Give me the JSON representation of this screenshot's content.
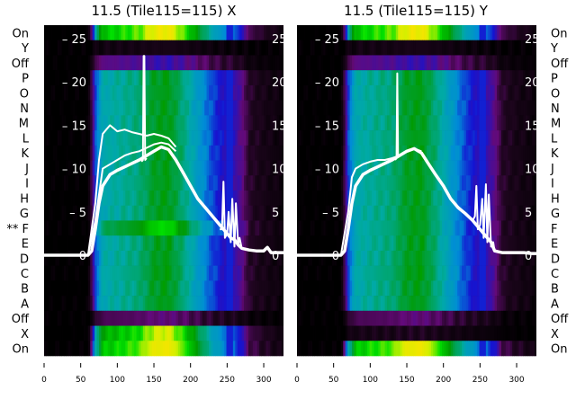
{
  "chart_data": {
    "type": "heatmap",
    "row_labels": [
      "On",
      "Y",
      "Off",
      "P",
      "O",
      "N",
      "M",
      "L",
      "K",
      "J",
      "I",
      "H",
      "G",
      "** F",
      "E",
      "D",
      "C",
      "B",
      "A",
      "Off",
      "X",
      "On"
    ],
    "x_ticks": [
      0,
      50,
      100,
      150,
      200,
      250,
      300
    ],
    "xlim": [
      0,
      327
    ],
    "y_ticks": [
      0,
      5,
      10,
      15,
      20,
      25
    ],
    "ylim": [
      -2,
      26
    ],
    "colors": {
      "line": "#ffffff",
      "label": "#000000",
      "tick_overlay": "#ffffff"
    },
    "heat_x": [
      0,
      60,
      65,
      70,
      80,
      100,
      130,
      150,
      170,
      190,
      210,
      230,
      245,
      260,
      270,
      280,
      300,
      327
    ],
    "panels": [
      {
        "title": "11.5 (Tile115=115) X",
        "label_side": "left",
        "row_gain": [
          1.05,
          0.08,
          0.3,
          0.74,
          0.74,
          0.74,
          0.74,
          0.74,
          0.74,
          0.74,
          0.74,
          0.74,
          0.74,
          0.86,
          0.74,
          0.74,
          0.75,
          0.74,
          0.74,
          0.22,
          1.0,
          1.05
        ],
        "heat_profile": [
          0,
          0,
          0.2,
          0.5,
          0.72,
          0.75,
          0.8,
          0.9,
          0.92,
          0.8,
          0.65,
          0.5,
          0.42,
          0.38,
          0.3,
          0.15,
          0.1,
          0.05
        ],
        "lines": [
          {
            "name": "main",
            "x": [
              0,
              60,
              65,
              70,
              75,
              80,
              90,
              100,
              110,
              120,
              130,
              140,
              150,
              160,
              170,
              180,
              190,
              200,
              210,
              220,
              230,
              240,
              245,
              250,
              255,
              260,
              265,
              270,
              280,
              290,
              300,
              305,
              310,
              327
            ],
            "y": [
              0,
              0,
              0.5,
              3,
              6,
              8,
              9.3,
              9.8,
              10.2,
              10.6,
              11,
              11.5,
              12,
              12.5,
              12.2,
              11,
              9.5,
              8,
              6.5,
              5.5,
              4.5,
              3.5,
              3,
              2.5,
              2,
              1.8,
              1.2,
              0.8,
              0.6,
              0.5,
              0.5,
              0.9,
              0.3,
              0.3
            ]
          },
          {
            "name": "mid",
            "x": [
              60,
              70,
              80,
              90,
              100,
              110,
              120,
              130,
              140,
              150,
              160,
              170,
              180
            ],
            "y": [
              0,
              4,
              10,
              10.5,
              11,
              11.5,
              11.8,
              12,
              12.4,
              12.8,
              13,
              12.8,
              12
            ]
          },
          {
            "name": "upper",
            "x": [
              60,
              70,
              75,
              80,
              85,
              90,
              100,
              110,
              120,
              130,
              140,
              150,
              160,
              170,
              180
            ],
            "y": [
              0,
              6,
              11,
              14,
              14.5,
              15,
              14.3,
              14.5,
              14.2,
              14,
              13.8,
              14,
              13.8,
              13.5,
              12.5
            ]
          },
          {
            "name": "spike",
            "x": [
              133,
              135,
              136,
              137,
              138,
              140
            ],
            "y": [
              10.8,
              11,
              23,
              23,
              11,
              11.2
            ]
          },
          {
            "name": "noise",
            "x": [
              240,
              243,
              245,
              247,
              250,
              252,
              255,
              257,
              260,
              262,
              265,
              267,
              270
            ],
            "y": [
              3,
              3,
              8.5,
              2,
              2.5,
              5,
              1.5,
              6.5,
              1,
              6,
              1.2,
              2,
              0.8
            ]
          }
        ]
      },
      {
        "title": "11.5 (Tile115=115) Y",
        "label_side": "right",
        "row_gain": [
          1.05,
          0.08,
          0.3,
          0.74,
          0.74,
          0.74,
          0.74,
          0.74,
          0.74,
          0.74,
          0.74,
          0.74,
          0.74,
          0.74,
          0.74,
          0.74,
          0.75,
          0.74,
          0.74,
          0.22,
          0.1,
          1.05
        ],
        "heat_profile": [
          0,
          0,
          0.2,
          0.5,
          0.72,
          0.76,
          0.8,
          0.9,
          0.92,
          0.8,
          0.65,
          0.5,
          0.42,
          0.38,
          0.3,
          0.15,
          0.1,
          0.05
        ],
        "lines": [
          {
            "name": "main",
            "x": [
              0,
              60,
              65,
              70,
              75,
              80,
              90,
              100,
              110,
              120,
              130,
              140,
              150,
              160,
              170,
              180,
              190,
              200,
              210,
              220,
              230,
              240,
              245,
              250,
              255,
              260,
              265,
              270,
              280,
              290,
              300,
              310,
              320,
              327
            ],
            "y": [
              0,
              0,
              0.5,
              3,
              6,
              8,
              9.3,
              9.8,
              10.2,
              10.6,
              11,
              11.5,
              12,
              12.3,
              11.8,
              10.5,
              9.2,
              8,
              6.5,
              5.5,
              4.8,
              4,
              3.5,
              3,
              2.5,
              2,
              1.5,
              0.5,
              0.3,
              0.3,
              0.3,
              0.3,
              0.2,
              0.2
            ]
          },
          {
            "name": "upper",
            "x": [
              60,
              70,
              75,
              80,
              90,
              100,
              110,
              120,
              130,
              140,
              150,
              160,
              170
            ],
            "y": [
              0,
              5,
              9,
              10,
              10.5,
              10.8,
              11,
              11,
              11.2,
              11.5,
              12,
              12.3,
              12
            ]
          },
          {
            "name": "spike",
            "x": [
              134,
              136,
              137,
              138,
              140
            ],
            "y": [
              11,
              11.2,
              21,
              11.3,
              11.5
            ]
          },
          {
            "name": "noise",
            "x": [
              240,
              243,
              245,
              247,
              250,
              253,
              255,
              258,
              260,
              262,
              265,
              268,
              270
            ],
            "y": [
              4,
              4.5,
              8,
              3,
              3.5,
              6.5,
              2,
              8.2,
              1.5,
              7,
              1,
              1.5,
              0.4
            ]
          }
        ]
      }
    ]
  }
}
